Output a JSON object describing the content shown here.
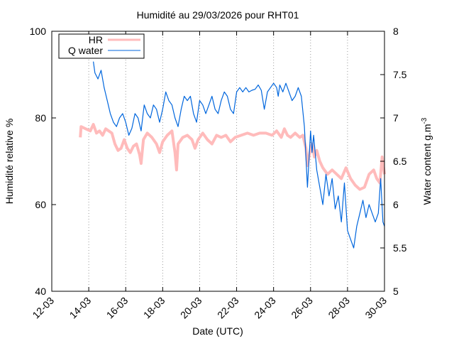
{
  "chart_data": {
    "type": "line",
    "title": "Humidité au 29/03/2026 pour RHT01",
    "xlabel": "Date (UTC)",
    "ylabel": "Humidité relative %",
    "y2label": "Water content g.m",
    "y2label_sup": "-3",
    "xlim": [
      "2026-03-12",
      "2026-03-30"
    ],
    "ylim": [
      40,
      100
    ],
    "y2lim": [
      5,
      8
    ],
    "x_ticks": [
      {
        "date": "2026-03-12",
        "label": "12-03"
      },
      {
        "date": "2026-03-14",
        "label": "14-03"
      },
      {
        "date": "2026-03-16",
        "label": "16-03"
      },
      {
        "date": "2026-03-18",
        "label": "18-03"
      },
      {
        "date": "2026-03-20",
        "label": "20-03"
      },
      {
        "date": "2026-03-22",
        "label": "22-03"
      },
      {
        "date": "2026-03-24",
        "label": "24-03"
      },
      {
        "date": "2026-03-26",
        "label": "26-03"
      },
      {
        "date": "2026-03-28",
        "label": "28-03"
      },
      {
        "date": "2026-03-30",
        "label": "30-03"
      }
    ],
    "y_ticks": [
      {
        "value": 40,
        "label": "40"
      },
      {
        "value": 60,
        "label": "60"
      },
      {
        "value": 80,
        "label": "80"
      },
      {
        "value": 100,
        "label": "100"
      }
    ],
    "y2_ticks": [
      {
        "value": 5,
        "label": "5"
      },
      {
        "value": 5.5,
        "label": "5.5"
      },
      {
        "value": 6,
        "label": "6"
      },
      {
        "value": 6.5,
        "label": "6.5"
      },
      {
        "value": 7,
        "label": "7"
      },
      {
        "value": 7.5,
        "label": "7.5"
      },
      {
        "value": 8,
        "label": "8"
      }
    ],
    "grid": "vertical-dotted",
    "legend_position": "top-left",
    "series": [
      {
        "name": "HR",
        "axis": "left",
        "color": "#ffbbbb",
        "points": [
          [
            "2026-03-13 13:00",
            75.5
          ],
          [
            "2026-03-13 14:00",
            78.0
          ],
          [
            "2026-03-13 20:00",
            77.5
          ],
          [
            "2026-03-14 02:00",
            77.0
          ],
          [
            "2026-03-14 06:00",
            78.5
          ],
          [
            "2026-03-14 10:00",
            76.5
          ],
          [
            "2026-03-14 14:00",
            77.0
          ],
          [
            "2026-03-14 18:00",
            76.0
          ],
          [
            "2026-03-14 22:00",
            77.5
          ],
          [
            "2026-03-15 02:00",
            77.0
          ],
          [
            "2026-03-15 06:00",
            76.5
          ],
          [
            "2026-03-15 10:00",
            74.0
          ],
          [
            "2026-03-15 14:00",
            72.5
          ],
          [
            "2026-03-15 18:00",
            73.0
          ],
          [
            "2026-03-15 22:00",
            75.0
          ],
          [
            "2026-03-16 02:00",
            73.0
          ],
          [
            "2026-03-16 06:00",
            72.0
          ],
          [
            "2026-03-16 10:00",
            73.5
          ],
          [
            "2026-03-16 14:00",
            74.0
          ],
          [
            "2026-03-16 18:00",
            71.5
          ],
          [
            "2026-03-16 20:00",
            69.5
          ],
          [
            "2026-03-16 23:00",
            75.0
          ],
          [
            "2026-03-17 04:00",
            76.5
          ],
          [
            "2026-03-17 10:00",
            75.5
          ],
          [
            "2026-03-17 16:00",
            74.0
          ],
          [
            "2026-03-17 20:00",
            72.0
          ],
          [
            "2026-03-18 00:00",
            74.5
          ],
          [
            "2026-03-18 06:00",
            76.0
          ],
          [
            "2026-03-18 12:00",
            77.0
          ],
          [
            "2026-03-18 16:00",
            72.0
          ],
          [
            "2026-03-18 18:00",
            68.0
          ],
          [
            "2026-03-18 20:00",
            74.0
          ],
          [
            "2026-03-19 02:00",
            75.5
          ],
          [
            "2026-03-19 08:00",
            76.0
          ],
          [
            "2026-03-19 14:00",
            75.0
          ],
          [
            "2026-03-19 18:00",
            73.0
          ],
          [
            "2026-03-19 22:00",
            75.0
          ],
          [
            "2026-03-20 04:00",
            76.5
          ],
          [
            "2026-03-20 10:00",
            75.0
          ],
          [
            "2026-03-20 16:00",
            74.0
          ],
          [
            "2026-03-20 22:00",
            76.0
          ],
          [
            "2026-03-21 04:00",
            75.5
          ],
          [
            "2026-03-21 10:00",
            76.0
          ],
          [
            "2026-03-21 16:00",
            74.5
          ],
          [
            "2026-03-21 22:00",
            75.5
          ],
          [
            "2026-03-22 06:00",
            76.0
          ],
          [
            "2026-03-22 14:00",
            76.5
          ],
          [
            "2026-03-22 22:00",
            76.0
          ],
          [
            "2026-03-23 06:00",
            76.5
          ],
          [
            "2026-03-23 14:00",
            76.5
          ],
          [
            "2026-03-23 22:00",
            76.0
          ],
          [
            "2026-03-24 04:00",
            77.0
          ],
          [
            "2026-03-24 10:00",
            75.5
          ],
          [
            "2026-03-24 14:00",
            77.5
          ],
          [
            "2026-03-24 18:00",
            76.0
          ],
          [
            "2026-03-24 22:00",
            75.5
          ],
          [
            "2026-03-25 04:00",
            76.5
          ],
          [
            "2026-03-25 10:00",
            75.5
          ],
          [
            "2026-03-25 14:00",
            76.0
          ],
          [
            "2026-03-25 18:00",
            73.0
          ],
          [
            "2026-03-25 20:00",
            69.0
          ],
          [
            "2026-03-25 23:00",
            72.0
          ],
          [
            "2026-03-26 02:00",
            74.0
          ],
          [
            "2026-03-26 05:00",
            71.0
          ],
          [
            "2026-03-26 08:00",
            72.5
          ],
          [
            "2026-03-26 12:00",
            70.0
          ],
          [
            "2026-03-26 16:00",
            68.5
          ],
          [
            "2026-03-26 22:00",
            67.0
          ],
          [
            "2026-03-27 04:00",
            68.0
          ],
          [
            "2026-03-27 10:00",
            67.0
          ],
          [
            "2026-03-27 16:00",
            66.0
          ],
          [
            "2026-03-27 22:00",
            68.5
          ],
          [
            "2026-03-28 04:00",
            66.0
          ],
          [
            "2026-03-28 10:00",
            64.5
          ],
          [
            "2026-03-28 16:00",
            63.5
          ],
          [
            "2026-03-28 22:00",
            64.0
          ],
          [
            "2026-03-29 04:00",
            67.0
          ],
          [
            "2026-03-29 10:00",
            68.0
          ],
          [
            "2026-03-29 14:00",
            66.0
          ],
          [
            "2026-03-29 18:00",
            65.0
          ],
          [
            "2026-03-29 21:00",
            71.0
          ],
          [
            "2026-03-30 00:00",
            67.0
          ]
        ]
      },
      {
        "name": "Q water",
        "axis": "right",
        "color": "#0066dd",
        "points": [
          [
            "2026-03-14 06:00",
            7.65
          ],
          [
            "2026-03-14 08:00",
            7.52
          ],
          [
            "2026-03-14 12:00",
            7.45
          ],
          [
            "2026-03-14 16:00",
            7.55
          ],
          [
            "2026-03-14 20:00",
            7.35
          ],
          [
            "2026-03-15 00:00",
            7.2
          ],
          [
            "2026-03-15 04:00",
            7.05
          ],
          [
            "2026-03-15 08:00",
            6.95
          ],
          [
            "2026-03-15 12:00",
            6.9
          ],
          [
            "2026-03-15 16:00",
            7.0
          ],
          [
            "2026-03-15 20:00",
            7.05
          ],
          [
            "2026-03-16 00:00",
            6.95
          ],
          [
            "2026-03-16 04:00",
            6.8
          ],
          [
            "2026-03-16 08:00",
            6.88
          ],
          [
            "2026-03-16 12:00",
            7.05
          ],
          [
            "2026-03-16 16:00",
            7.0
          ],
          [
            "2026-03-16 20:00",
            6.85
          ],
          [
            "2026-03-17 00:00",
            7.15
          ],
          [
            "2026-03-17 04:00",
            7.05
          ],
          [
            "2026-03-17 08:00",
            7.0
          ],
          [
            "2026-03-17 12:00",
            7.15
          ],
          [
            "2026-03-17 16:00",
            7.1
          ],
          [
            "2026-03-17 20:00",
            6.95
          ],
          [
            "2026-03-18 00:00",
            7.1
          ],
          [
            "2026-03-18 04:00",
            7.3
          ],
          [
            "2026-03-18 08:00",
            7.2
          ],
          [
            "2026-03-18 12:00",
            7.15
          ],
          [
            "2026-03-18 16:00",
            7.0
          ],
          [
            "2026-03-18 20:00",
            6.9
          ],
          [
            "2026-03-19 00:00",
            7.1
          ],
          [
            "2026-03-19 04:00",
            7.25
          ],
          [
            "2026-03-19 08:00",
            7.2
          ],
          [
            "2026-03-19 12:00",
            7.25
          ],
          [
            "2026-03-19 16:00",
            7.05
          ],
          [
            "2026-03-19 20:00",
            6.95
          ],
          [
            "2026-03-20 00:00",
            7.2
          ],
          [
            "2026-03-20 04:00",
            7.15
          ],
          [
            "2026-03-20 08:00",
            7.05
          ],
          [
            "2026-03-20 12:00",
            7.15
          ],
          [
            "2026-03-20 16:00",
            7.25
          ],
          [
            "2026-03-20 20:00",
            7.1
          ],
          [
            "2026-03-21 00:00",
            7.05
          ],
          [
            "2026-03-21 04:00",
            7.2
          ],
          [
            "2026-03-21 08:00",
            7.3
          ],
          [
            "2026-03-21 12:00",
            7.25
          ],
          [
            "2026-03-21 16:00",
            7.1
          ],
          [
            "2026-03-21 20:00",
            7.05
          ],
          [
            "2026-03-22 00:00",
            7.3
          ],
          [
            "2026-03-22 04:00",
            7.35
          ],
          [
            "2026-03-22 08:00",
            7.3
          ],
          [
            "2026-03-22 12:00",
            7.35
          ],
          [
            "2026-03-22 16:00",
            7.3
          ],
          [
            "2026-03-22 20:00",
            7.32
          ],
          [
            "2026-03-23 00:00",
            7.33
          ],
          [
            "2026-03-23 04:00",
            7.38
          ],
          [
            "2026-03-23 08:00",
            7.32
          ],
          [
            "2026-03-23 12:00",
            7.1
          ],
          [
            "2026-03-23 16:00",
            7.3
          ],
          [
            "2026-03-23 20:00",
            7.35
          ],
          [
            "2026-03-24 00:00",
            7.4
          ],
          [
            "2026-03-24 04:00",
            7.35
          ],
          [
            "2026-03-24 06:00",
            7.25
          ],
          [
            "2026-03-24 08:00",
            7.38
          ],
          [
            "2026-03-24 12:00",
            7.3
          ],
          [
            "2026-03-24 16:00",
            7.4
          ],
          [
            "2026-03-24 20:00",
            7.3
          ],
          [
            "2026-03-25 00:00",
            7.2
          ],
          [
            "2026-03-25 04:00",
            7.25
          ],
          [
            "2026-03-25 08:00",
            7.35
          ],
          [
            "2026-03-25 12:00",
            7.25
          ],
          [
            "2026-03-25 16:00",
            6.9
          ],
          [
            "2026-03-25 20:00",
            6.2
          ],
          [
            "2026-03-26 00:00",
            6.85
          ],
          [
            "2026-03-26 02:00",
            6.6
          ],
          [
            "2026-03-26 04:00",
            6.8
          ],
          [
            "2026-03-26 08:00",
            6.4
          ],
          [
            "2026-03-26 12:00",
            6.2
          ],
          [
            "2026-03-26 16:00",
            6.0
          ],
          [
            "2026-03-26 20:00",
            6.35
          ],
          [
            "2026-03-27 00:00",
            6.1
          ],
          [
            "2026-03-27 04:00",
            6.3
          ],
          [
            "2026-03-27 08:00",
            5.95
          ],
          [
            "2026-03-27 12:00",
            6.1
          ],
          [
            "2026-03-27 16:00",
            5.8
          ],
          [
            "2026-03-27 20:00",
            6.25
          ],
          [
            "2026-03-28 00:00",
            5.7
          ],
          [
            "2026-03-28 04:00",
            5.6
          ],
          [
            "2026-03-28 08:00",
            5.5
          ],
          [
            "2026-03-28 12:00",
            5.75
          ],
          [
            "2026-03-28 16:00",
            5.9
          ],
          [
            "2026-03-28 20:00",
            6.05
          ],
          [
            "2026-03-29 00:00",
            5.85
          ],
          [
            "2026-03-29 04:00",
            6.0
          ],
          [
            "2026-03-29 08:00",
            5.9
          ],
          [
            "2026-03-29 12:00",
            5.8
          ],
          [
            "2026-03-29 16:00",
            5.9
          ],
          [
            "2026-03-29 19:00",
            6.3
          ],
          [
            "2026-03-29 22:00",
            5.8
          ],
          [
            "2026-03-30 00:00",
            5.75
          ]
        ]
      }
    ]
  }
}
